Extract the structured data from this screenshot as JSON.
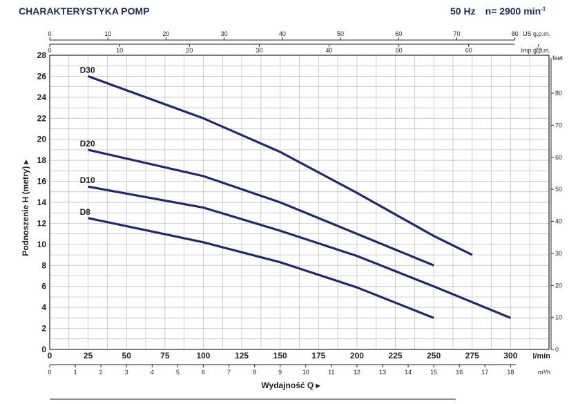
{
  "header": {
    "title": "CHARAKTERYSTYKA POMP",
    "freq": "50 Hz",
    "speed": "n= 2900 min",
    "speed_exp": "-1"
  },
  "colors": {
    "curve": "#1f2a6e",
    "grid": "#b8b8b8",
    "axis": "#222222",
    "title": "#1f2a5c"
  },
  "chart_data": {
    "type": "line",
    "title": "",
    "xlabel": "Wydajność Q",
    "ylabel": "Podnoszenie H (metry)",
    "xlim": [
      0,
      325
    ],
    "ylim": [
      0,
      28
    ],
    "grid": true,
    "x_unit": "l/min",
    "x_ticks": [
      0,
      25,
      50,
      75,
      100,
      125,
      150,
      175,
      200,
      225,
      250,
      275,
      300
    ],
    "y_ticks": [
      0,
      2,
      4,
      6,
      8,
      10,
      12,
      14,
      16,
      18,
      20,
      22,
      24,
      26,
      28
    ],
    "secondary_axes": {
      "m3h": {
        "unit": "m³/h",
        "ticks": [
          0,
          1,
          2,
          3,
          4,
          5,
          6,
          7,
          8,
          9,
          10,
          11,
          12,
          13,
          14,
          15,
          16,
          17,
          18
        ]
      },
      "us_gpm": {
        "unit": "US g.p.m.",
        "ticks": [
          0,
          10,
          20,
          30,
          40,
          50,
          60,
          70,
          80
        ]
      },
      "imp_gpm": {
        "unit": "Imp g.p.m.",
        "ticks": [
          0,
          10,
          20,
          30,
          40,
          50,
          60,
          70
        ]
      },
      "feet": {
        "unit": "feet",
        "ticks": [
          0,
          10,
          20,
          30,
          40,
          50,
          60,
          70,
          80
        ]
      }
    },
    "series": [
      {
        "name": "D30",
        "x": [
          25,
          100,
          150,
          200,
          250,
          275
        ],
        "y": [
          26,
          22,
          18.8,
          14.9,
          10.8,
          9
        ]
      },
      {
        "name": "D20",
        "x": [
          25,
          100,
          150,
          200,
          250
        ],
        "y": [
          19,
          16.5,
          14,
          11,
          8
        ]
      },
      {
        "name": "D10",
        "x": [
          25,
          100,
          150,
          200,
          250,
          300
        ],
        "y": [
          15.5,
          13.5,
          11.3,
          8.9,
          6,
          3
        ]
      },
      {
        "name": "D8",
        "x": [
          25,
          100,
          150,
          200,
          250
        ],
        "y": [
          12.5,
          10.2,
          8.3,
          5.9,
          3
        ]
      }
    ]
  }
}
